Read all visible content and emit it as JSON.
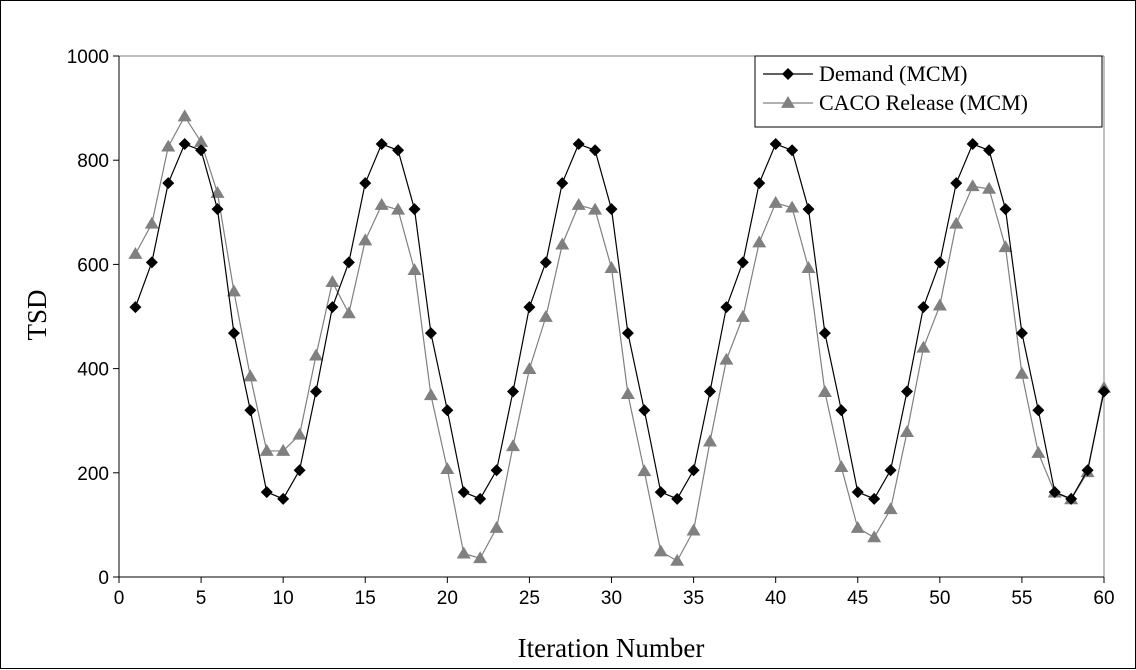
{
  "chart_data": {
    "type": "line",
    "title": "",
    "xlabel": "Iteration Number",
    "ylabel": "TSD",
    "xlim": [
      0,
      60
    ],
    "ylim": [
      0,
      1000
    ],
    "xticks": [
      0,
      5,
      10,
      15,
      20,
      25,
      30,
      35,
      40,
      45,
      50,
      55,
      60
    ],
    "yticks": [
      0,
      200,
      400,
      600,
      800,
      1000
    ],
    "grid": false,
    "legend_position": "top-right",
    "x": [
      1,
      2,
      3,
      4,
      5,
      6,
      7,
      8,
      9,
      10,
      11,
      12,
      13,
      14,
      15,
      16,
      17,
      18,
      19,
      20,
      21,
      22,
      23,
      24,
      25,
      26,
      27,
      28,
      29,
      30,
      31,
      32,
      33,
      34,
      35,
      36,
      37,
      38,
      39,
      40,
      41,
      42,
      43,
      44,
      45,
      46,
      47,
      48,
      49,
      50,
      51,
      52,
      53,
      54,
      55,
      56,
      57,
      58,
      59,
      60
    ],
    "series": [
      {
        "name": "Demand (MCM)",
        "marker": "diamond",
        "color": "#000000",
        "values": [
          518,
          604,
          756,
          831,
          819,
          706,
          468,
          320,
          163,
          150,
          205,
          356,
          518,
          604,
          756,
          831,
          819,
          706,
          468,
          320,
          163,
          150,
          205,
          356,
          518,
          604,
          756,
          831,
          819,
          706,
          468,
          320,
          163,
          150,
          205,
          356,
          518,
          604,
          756,
          831,
          819,
          706,
          468,
          320,
          163,
          150,
          205,
          356,
          518,
          604,
          756,
          831,
          819,
          706,
          468,
          320,
          163,
          150,
          205,
          356
        ]
      },
      {
        "name": "CACO Release (MCM)",
        "marker": "triangle",
        "color": "#808080",
        "values": [
          620,
          678,
          826,
          884,
          835,
          737,
          548,
          385,
          242,
          242,
          273,
          425,
          566,
          506,
          646,
          714,
          705,
          589,
          349,
          207,
          45,
          36,
          94,
          251,
          399,
          499,
          638,
          714,
          705,
          593,
          351,
          203,
          49,
          31,
          89,
          260,
          417,
          499,
          642,
          718,
          709,
          593,
          355,
          211,
          94,
          76,
          130,
          278,
          440,
          521,
          678,
          750,
          745,
          633,
          390,
          238,
          162,
          149,
          201,
          363
        ]
      }
    ]
  }
}
